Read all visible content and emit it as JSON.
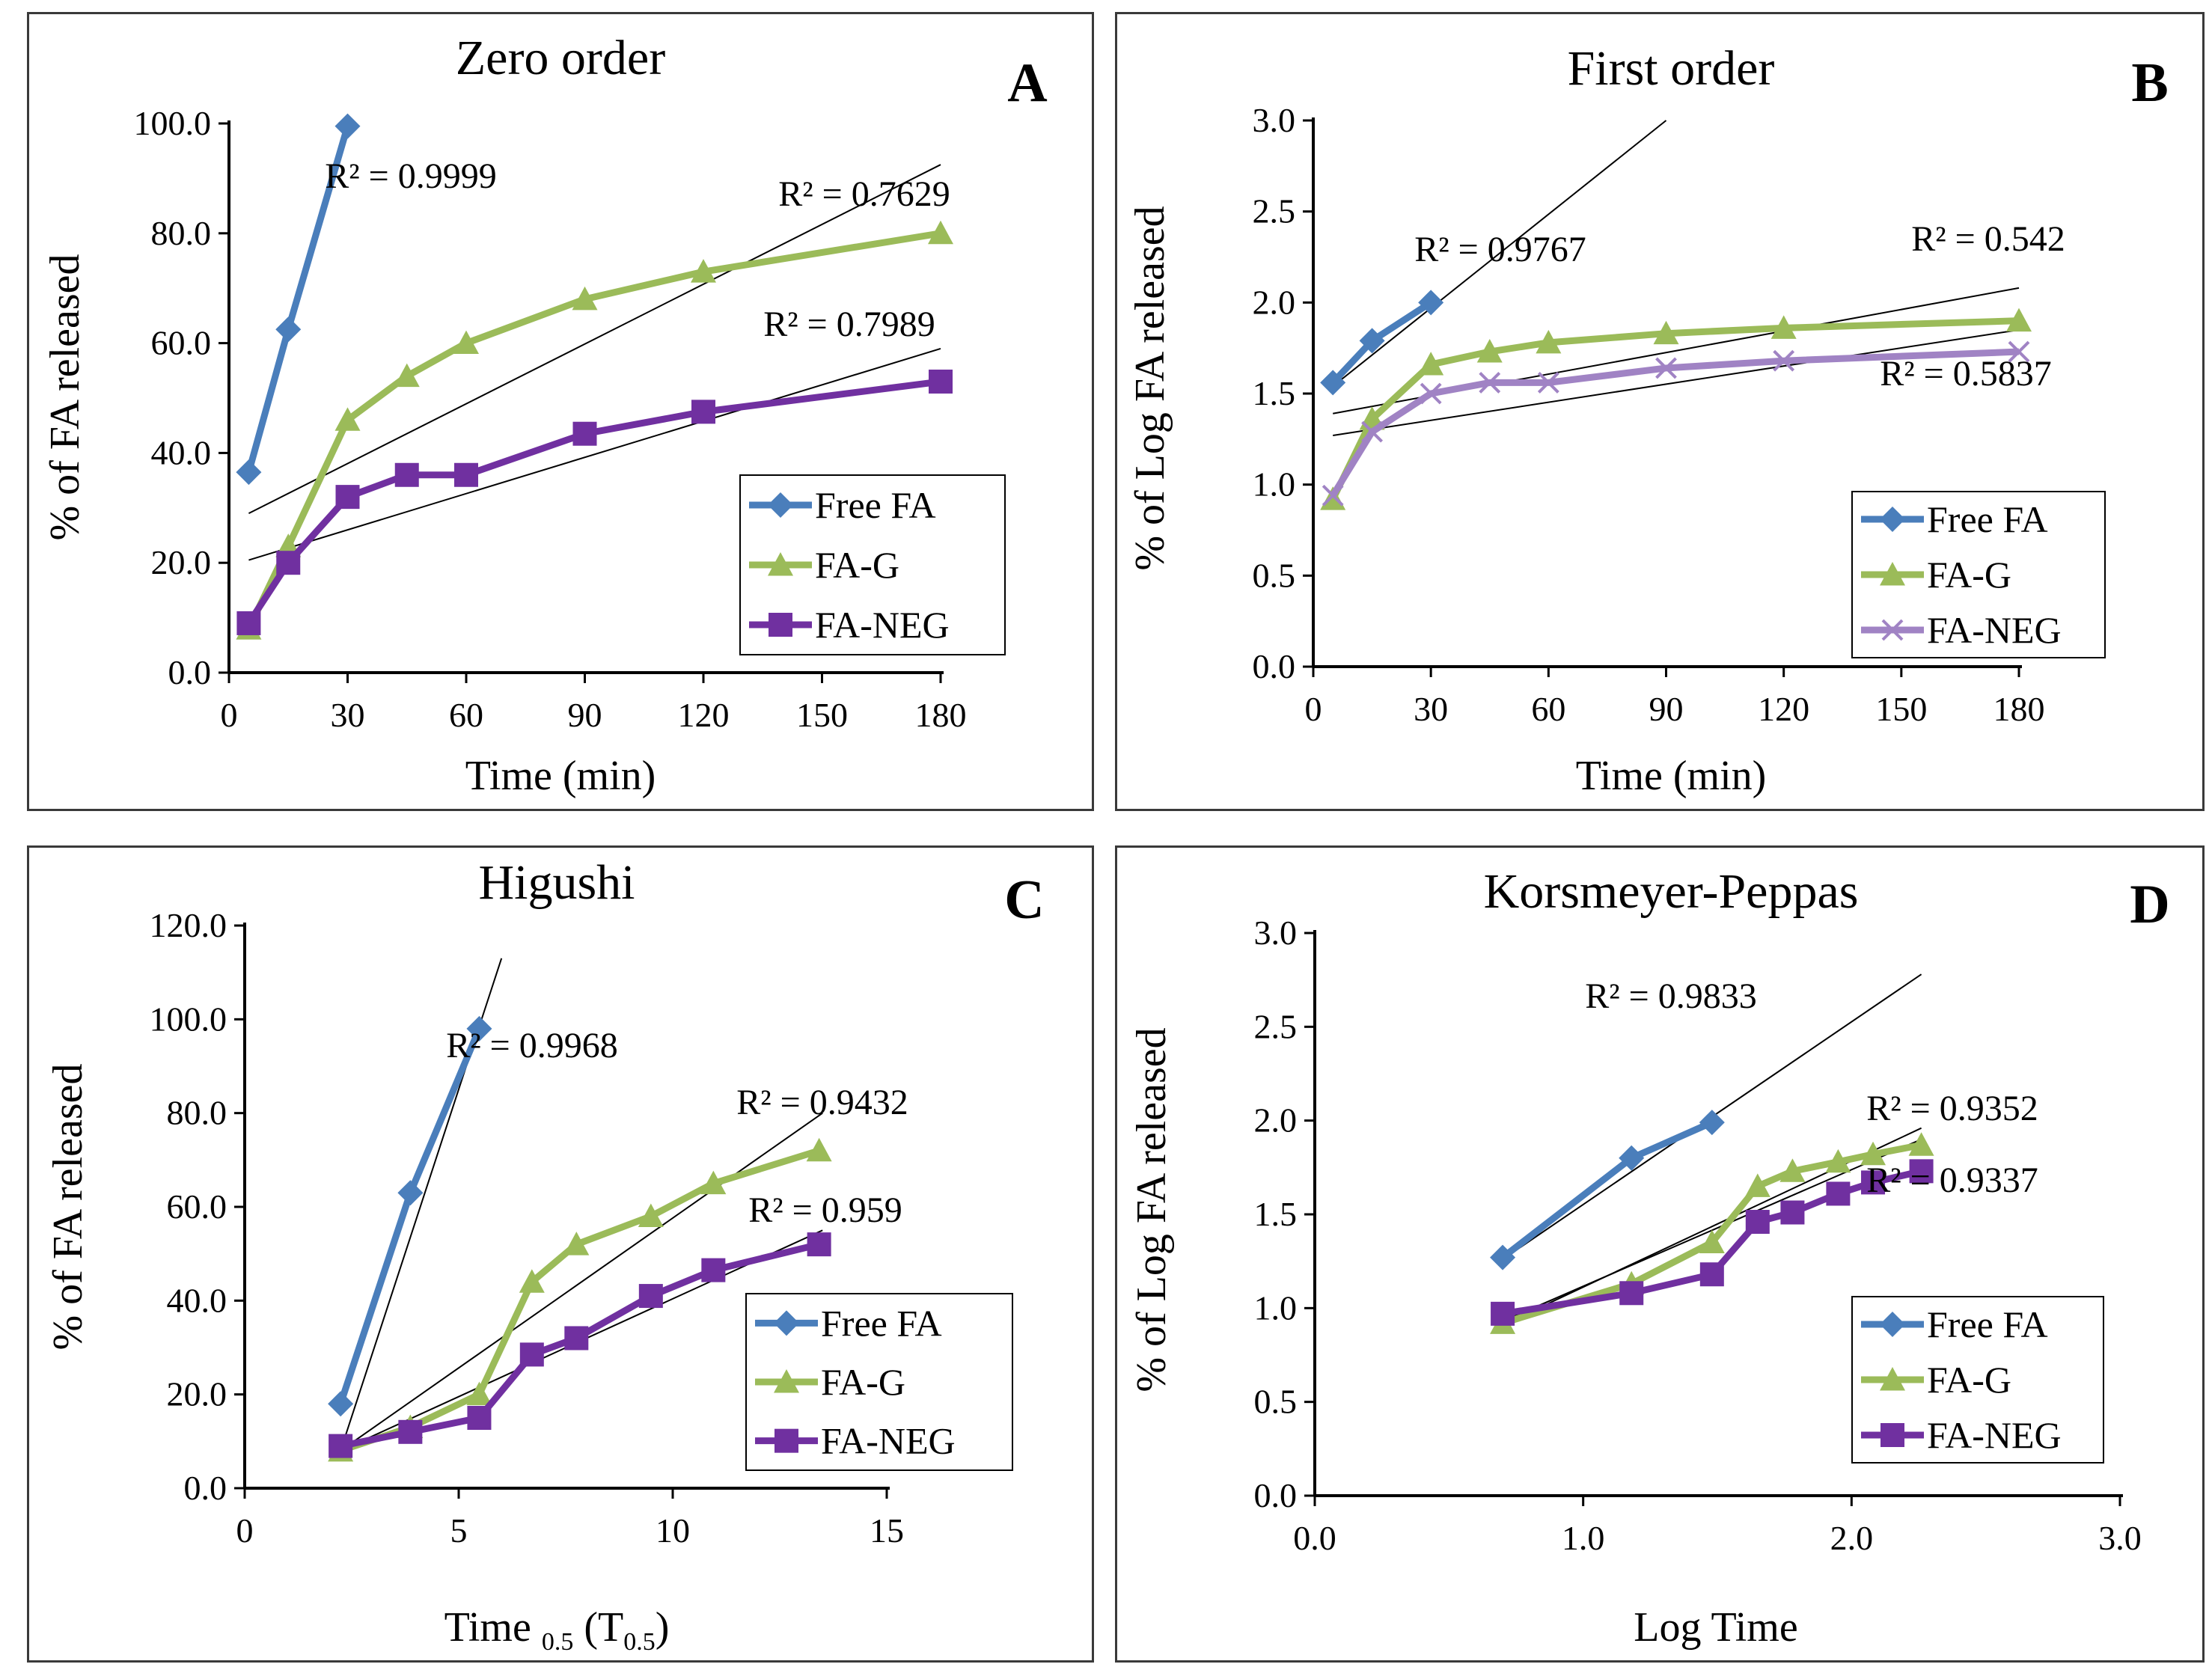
{
  "panels": [
    {
      "id": "A",
      "letter": "A",
      "title": "Zero order",
      "xlabel": "Time  (min)",
      "ylabel": "% of FA released",
      "xlim": [
        0,
        180
      ],
      "ylim": [
        0,
        100
      ],
      "xticks": [
        0,
        30,
        60,
        90,
        120,
        150,
        180
      ],
      "xtick_labels": [
        "0",
        "30",
        "60",
        "90",
        "120",
        "150",
        "180"
      ],
      "yticks": [
        0,
        20,
        40,
        60,
        80,
        100
      ],
      "ytick_labels": [
        "0.0",
        "20.0",
        "40.0",
        "60.0",
        "80.0",
        "100.0"
      ],
      "r2_labels": [
        {
          "text": "R² = 0.9999",
          "series": "Free FA"
        },
        {
          "text": "R² = 0.7629",
          "series": "FA-G"
        },
        {
          "text": "R² = 0.7989",
          "series": "FA-NEG"
        }
      ],
      "legend": [
        "Free FA",
        "FA-G",
        "FA-NEG"
      ]
    },
    {
      "id": "B",
      "letter": "B",
      "title": "First order",
      "xlabel": "Time  (min)",
      "ylabel": "% of Log FA released",
      "xlim": [
        0,
        180
      ],
      "ylim": [
        0,
        3
      ],
      "xticks": [
        0,
        30,
        60,
        90,
        120,
        150,
        180
      ],
      "xtick_labels": [
        "0",
        "30",
        "60",
        "90",
        "120",
        "150",
        "180"
      ],
      "yticks": [
        0,
        0.5,
        1,
        1.5,
        2,
        2.5,
        3
      ],
      "ytick_labels": [
        "0.0",
        "0.5",
        "1.0",
        "1.5",
        "2.0",
        "2.5",
        "3.0"
      ],
      "r2_labels": [
        {
          "text": "R² = 0.9767",
          "series": "Free FA"
        },
        {
          "text": "R² = 0.542",
          "series": "FA-G"
        },
        {
          "text": "R² = 0.5837",
          "series": "FA-NEG"
        }
      ],
      "legend": [
        "Free FA",
        "FA-G",
        "FA-NEG"
      ]
    },
    {
      "id": "C",
      "letter": "C",
      "title": "Higushi",
      "xlabel": "Time",
      "xlabel_sub": "0.5",
      "xlabel_tail": " (T",
      "xlabel_tail_sub": "0.5",
      "xlabel_close": ")",
      "ylabel": "% of FA released",
      "xlim": [
        0,
        15
      ],
      "ylim": [
        0,
        120
      ],
      "xticks": [
        0,
        5,
        10,
        15
      ],
      "xtick_labels": [
        "0",
        "5",
        "10",
        "15"
      ],
      "yticks": [
        0,
        20,
        40,
        60,
        80,
        100,
        120
      ],
      "ytick_labels": [
        "0.0",
        "20.0",
        "40.0",
        "60.0",
        "80.0",
        "100.0",
        "120.0"
      ],
      "r2_labels": [
        {
          "text": "R² = 0.9968",
          "series": "Free FA"
        },
        {
          "text": "R² = 0.9432",
          "series": "FA-G"
        },
        {
          "text": "R² = 0.959",
          "series": "FA-NEG"
        }
      ],
      "legend": [
        "Free FA",
        "FA-G",
        "FA-NEG"
      ]
    },
    {
      "id": "D",
      "letter": "D",
      "title": "Korsmeyer-Peppas",
      "xlabel": "Log Time",
      "ylabel": "% of Log FA released",
      "xlim": [
        0,
        3
      ],
      "ylim": [
        0,
        3
      ],
      "xticks": [
        0,
        1,
        2,
        3
      ],
      "xtick_labels": [
        "0.0",
        "1.0",
        "2.0",
        "3.0"
      ],
      "yticks": [
        0,
        0.5,
        1,
        1.5,
        2,
        2.5,
        3
      ],
      "ytick_labels": [
        "0.0",
        "0.5",
        "1.0",
        "1.5",
        "2.0",
        "2.5",
        "3.0"
      ],
      "r2_labels": [
        {
          "text": "R² = 0.9833",
          "series": "Free FA"
        },
        {
          "text": "R² = 0.9352",
          "series": "FA-G"
        },
        {
          "text": "R² = 0.9337",
          "series": "FA-NEG"
        }
      ],
      "legend": [
        "Free FA",
        "FA-G",
        "FA-NEG"
      ]
    }
  ],
  "colors": {
    "free_fa": "#4a7ebb",
    "fa_g": "#9bbb59",
    "fa_neg": "#7030a0",
    "fa_neg_light": "#a083c4",
    "trendline": "#000000"
  },
  "chart_data": [
    {
      "type": "line",
      "title": "Zero order",
      "xlabel": "Time  (min)",
      "ylabel": "% of FA released",
      "xlim": [
        0,
        180
      ],
      "ylim": [
        0,
        100
      ],
      "grid": false,
      "legend_position": "bottom-right",
      "series": [
        {
          "name": "Free FA",
          "marker": "diamond",
          "x": [
            5,
            15,
            30
          ],
          "y": [
            36.5,
            62.5,
            99.5
          ]
        },
        {
          "name": "FA-G",
          "marker": "triangle",
          "x": [
            5,
            15,
            30,
            45,
            60,
            90,
            120,
            180
          ],
          "y": [
            8,
            23,
            46,
            54,
            60,
            68,
            73,
            80
          ]
        },
        {
          "name": "FA-NEG",
          "marker": "square",
          "x": [
            5,
            15,
            30,
            45,
            60,
            90,
            120,
            180
          ],
          "y": [
            9,
            20,
            32,
            36,
            36,
            43.5,
            47.5,
            53
          ]
        }
      ],
      "trendlines": [
        {
          "series": "Free FA",
          "x": [
            5,
            30
          ],
          "y": [
            36,
            100
          ],
          "r2": "R² = 0.9999"
        },
        {
          "series": "FA-G",
          "x": [
            5,
            180
          ],
          "y": [
            29,
            92.5
          ],
          "r2": "R² = 0.7629"
        },
        {
          "series": "FA-NEG",
          "x": [
            5,
            180
          ],
          "y": [
            20.5,
            59
          ],
          "r2": "R² = 0.7989"
        }
      ]
    },
    {
      "type": "line",
      "title": "First order",
      "xlabel": "Time  (min)",
      "ylabel": "% of Log FA released",
      "xlim": [
        0,
        180
      ],
      "ylim": [
        0,
        3
      ],
      "grid": false,
      "legend_position": "bottom-right",
      "series": [
        {
          "name": "Free FA",
          "marker": "diamond",
          "x": [
            5,
            15,
            30
          ],
          "y": [
            1.56,
            1.79,
            2.0
          ]
        },
        {
          "name": "FA-G",
          "marker": "triangle",
          "x": [
            5,
            15,
            30,
            45,
            60,
            90,
            120,
            180
          ],
          "y": [
            0.92,
            1.36,
            1.66,
            1.73,
            1.78,
            1.83,
            1.86,
            1.9
          ]
        },
        {
          "name": "FA-NEG",
          "marker": "cross",
          "x": [
            5,
            15,
            30,
            45,
            60,
            90,
            120,
            180
          ],
          "y": [
            0.94,
            1.29,
            1.5,
            1.56,
            1.56,
            1.64,
            1.68,
            1.73
          ]
        }
      ],
      "trendlines": [
        {
          "series": "Free FA",
          "x": [
            5,
            90
          ],
          "y": [
            1.54,
            3.0
          ],
          "r2": "R² = 0.9767"
        },
        {
          "series": "FA-G",
          "x": [
            5,
            180
          ],
          "y": [
            1.39,
            2.08
          ],
          "r2": "R² = 0.542"
        },
        {
          "series": "FA-NEG",
          "x": [
            5,
            180
          ],
          "y": [
            1.27,
            1.85
          ],
          "r2": "R² = 0.5837"
        }
      ]
    },
    {
      "type": "line",
      "title": "Higushi",
      "xlabel": "Time 0.5 (T0.5)",
      "ylabel": "% of FA released",
      "xlim": [
        0,
        15
      ],
      "ylim": [
        0,
        120
      ],
      "grid": false,
      "legend_position": "bottom-right",
      "series": [
        {
          "name": "Free FA",
          "marker": "diamond",
          "x": [
            2.24,
            3.87,
            5.48
          ],
          "y": [
            18,
            63,
            98
          ]
        },
        {
          "name": "FA-G",
          "marker": "triangle",
          "x": [
            2.24,
            3.87,
            5.48,
            6.71,
            7.75,
            9.49,
            10.95,
            13.42
          ],
          "y": [
            8,
            13,
            20,
            44,
            52,
            58,
            65,
            72
          ]
        },
        {
          "name": "FA-NEG",
          "marker": "square",
          "x": [
            2.24,
            3.87,
            5.48,
            6.71,
            7.75,
            9.49,
            10.95,
            13.42
          ],
          "y": [
            9,
            12,
            15,
            28.5,
            32,
            41,
            46.5,
            52
          ]
        }
      ],
      "trendlines": [
        {
          "series": "Free FA",
          "x": [
            2.24,
            6.0
          ],
          "y": [
            8,
            113
          ],
          "r2": "R² = 0.9968"
        },
        {
          "series": "FA-G",
          "x": [
            2.24,
            13.5
          ],
          "y": [
            8,
            80
          ],
          "r2": "R² = 0.9432"
        },
        {
          "series": "FA-NEG",
          "x": [
            2.24,
            13.5
          ],
          "y": [
            8,
            55
          ],
          "r2": "R² = 0.959"
        }
      ]
    },
    {
      "type": "line",
      "title": "Korsmeyer-Peppas",
      "xlabel": "Log Time",
      "ylabel": "% of Log FA released",
      "xlim": [
        0,
        3
      ],
      "ylim": [
        0,
        3
      ],
      "grid": false,
      "legend_position": "bottom-right",
      "series": [
        {
          "name": "Free FA",
          "marker": "diamond",
          "x": [
            0.7,
            1.18,
            1.48
          ],
          "y": [
            1.27,
            1.8,
            1.99
          ]
        },
        {
          "name": "FA-G",
          "marker": "triangle",
          "x": [
            0.7,
            1.18,
            1.48,
            1.65,
            1.78,
            1.95,
            2.08,
            2.26
          ],
          "y": [
            0.92,
            1.13,
            1.35,
            1.65,
            1.73,
            1.78,
            1.82,
            1.87
          ]
        },
        {
          "name": "FA-NEG",
          "marker": "square",
          "x": [
            0.7,
            1.18,
            1.48,
            1.65,
            1.78,
            1.95,
            2.08,
            2.26
          ],
          "y": [
            0.97,
            1.08,
            1.18,
            1.46,
            1.51,
            1.61,
            1.67,
            1.73
          ]
        }
      ],
      "trendlines": [
        {
          "series": "Free FA",
          "x": [
            0.7,
            2.26
          ],
          "y": [
            1.26,
            2.78
          ],
          "r2": "R² = 0.9833"
        },
        {
          "series": "FA-G",
          "x": [
            0.7,
            2.26
          ],
          "y": [
            0.91,
            1.96
          ],
          "r2": "R² = 0.9352"
        },
        {
          "series": "FA-NEG",
          "x": [
            0.7,
            2.26
          ],
          "y": [
            0.93,
            1.9
          ],
          "r2": "R² = 0.9337"
        }
      ]
    }
  ]
}
